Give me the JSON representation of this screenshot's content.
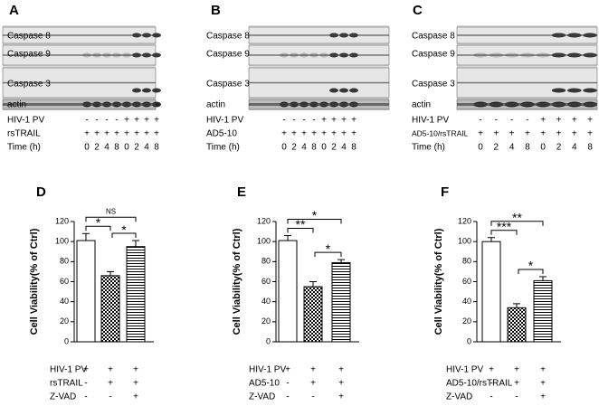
{
  "blots": [
    {
      "letter": "A",
      "bands": [
        "Caspase 8",
        "Caspase 9",
        "Caspase 3",
        "actin"
      ],
      "rows": [
        {
          "label": "HIV-1 PV",
          "cells": [
            "-",
            "-",
            "-",
            "-",
            "+",
            "+",
            "+",
            "+"
          ]
        },
        {
          "label": "rsTRAIL",
          "cells": [
            "+",
            "+",
            "+",
            "+",
            "+",
            "+",
            "+",
            "+"
          ]
        },
        {
          "label": "Time (h)",
          "cells": [
            0,
            2,
            4,
            8,
            0,
            2,
            4,
            8
          ]
        }
      ]
    },
    {
      "letter": "B",
      "bands": [
        "Caspase 8",
        "Caspase 9",
        "Caspase 3",
        "actin"
      ],
      "rows": [
        {
          "label": "HIV-1 PV",
          "cells": [
            "-",
            "-",
            "-",
            "-",
            "+",
            "+",
            "+",
            "+"
          ]
        },
        {
          "label": "AD5-10",
          "cells": [
            "+",
            "+",
            "+",
            "+",
            "+",
            "+",
            "+",
            "+"
          ]
        },
        {
          "label": "Time (h)",
          "cells": [
            0,
            2,
            4,
            8,
            0,
            2,
            4,
            8
          ]
        }
      ]
    },
    {
      "letter": "C",
      "bands": [
        "Caspase 8",
        "Caspase 9",
        "Caspase 3",
        "actin"
      ],
      "rows": [
        {
          "label": "HIV-1 PV",
          "cells": [
            "-",
            "-",
            "-",
            "-",
            "+",
            "+",
            "+",
            "+"
          ]
        },
        {
          "label": "AD5-10/rsTRAIL",
          "cells": [
            "+",
            "+",
            "+",
            "+",
            "+",
            "+",
            "+",
            "+"
          ]
        },
        {
          "label": "Time (h)",
          "cells": [
            0,
            2,
            4,
            8,
            0,
            2,
            4,
            8
          ]
        }
      ]
    }
  ],
  "chart_data": [
    {
      "type": "bar",
      "letter": "D",
      "ylabel": "Cell Viability(% of Ctrl)",
      "values": [
        101,
        66,
        95
      ],
      "errors": [
        7,
        4,
        6
      ],
      "fills": [
        "white",
        "checker",
        "stripes"
      ],
      "ylim": [
        0,
        120
      ],
      "yticks": [
        0,
        20,
        40,
        60,
        80,
        100,
        120
      ],
      "rows": [
        {
          "label": "HIV-1 PV",
          "cells": [
            "+",
            "+",
            "+"
          ]
        },
        {
          "label": "rsTRAIL",
          "cells": [
            "-",
            "+",
            "+"
          ]
        },
        {
          "label": "Z-VAD",
          "cells": [
            "-",
            "-",
            "+"
          ]
        }
      ],
      "annotations": [
        {
          "from": 0,
          "to": 1,
          "label": "*"
        },
        {
          "from": 1,
          "to": 2,
          "label": "*"
        },
        {
          "from": 0,
          "to": 2,
          "label": "NS"
        }
      ]
    },
    {
      "type": "bar",
      "letter": "E",
      "ylabel": "Cell Viability(% of Ctrl)",
      "values": [
        101,
        55,
        79
      ],
      "errors": [
        5,
        5,
        3
      ],
      "fills": [
        "white",
        "checker",
        "stripes"
      ],
      "ylim": [
        0,
        120
      ],
      "yticks": [
        0,
        20,
        40,
        60,
        80,
        100,
        120
      ],
      "rows": [
        {
          "label": "HIV-1 PV",
          "cells": [
            "+",
            "+",
            "+"
          ]
        },
        {
          "label": "AD5-10",
          "cells": [
            "-",
            "+",
            "+"
          ]
        },
        {
          "label": "Z-VAD",
          "cells": [
            "-",
            "-",
            "+"
          ]
        }
      ],
      "annotations": [
        {
          "from": 0,
          "to": 1,
          "label": "**"
        },
        {
          "from": 1,
          "to": 2,
          "label": "*"
        },
        {
          "from": 0,
          "to": 2,
          "label": "*"
        }
      ]
    },
    {
      "type": "bar",
      "letter": "F",
      "ylabel": "Cell Viability(% of Ctrl)",
      "values": [
        100,
        34,
        61
      ],
      "errors": [
        4,
        4,
        4
      ],
      "fills": [
        "white",
        "checker",
        "stripes"
      ],
      "ylim": [
        0,
        120
      ],
      "yticks": [
        0,
        20,
        40,
        60,
        80,
        100,
        120
      ],
      "rows": [
        {
          "label": "HIV-1 PV",
          "cells": [
            "+",
            "+",
            "+"
          ]
        },
        {
          "label": "AD5-10/rsTRAIL",
          "cells": [
            "-",
            "+",
            "+"
          ]
        },
        {
          "label": "Z-VAD",
          "cells": [
            "-",
            "-",
            "+"
          ]
        }
      ],
      "annotations": [
        {
          "from": 0,
          "to": 1,
          "label": "***"
        },
        {
          "from": 1,
          "to": 2,
          "label": "*"
        },
        {
          "from": 0,
          "to": 2,
          "label": "**"
        }
      ]
    }
  ]
}
